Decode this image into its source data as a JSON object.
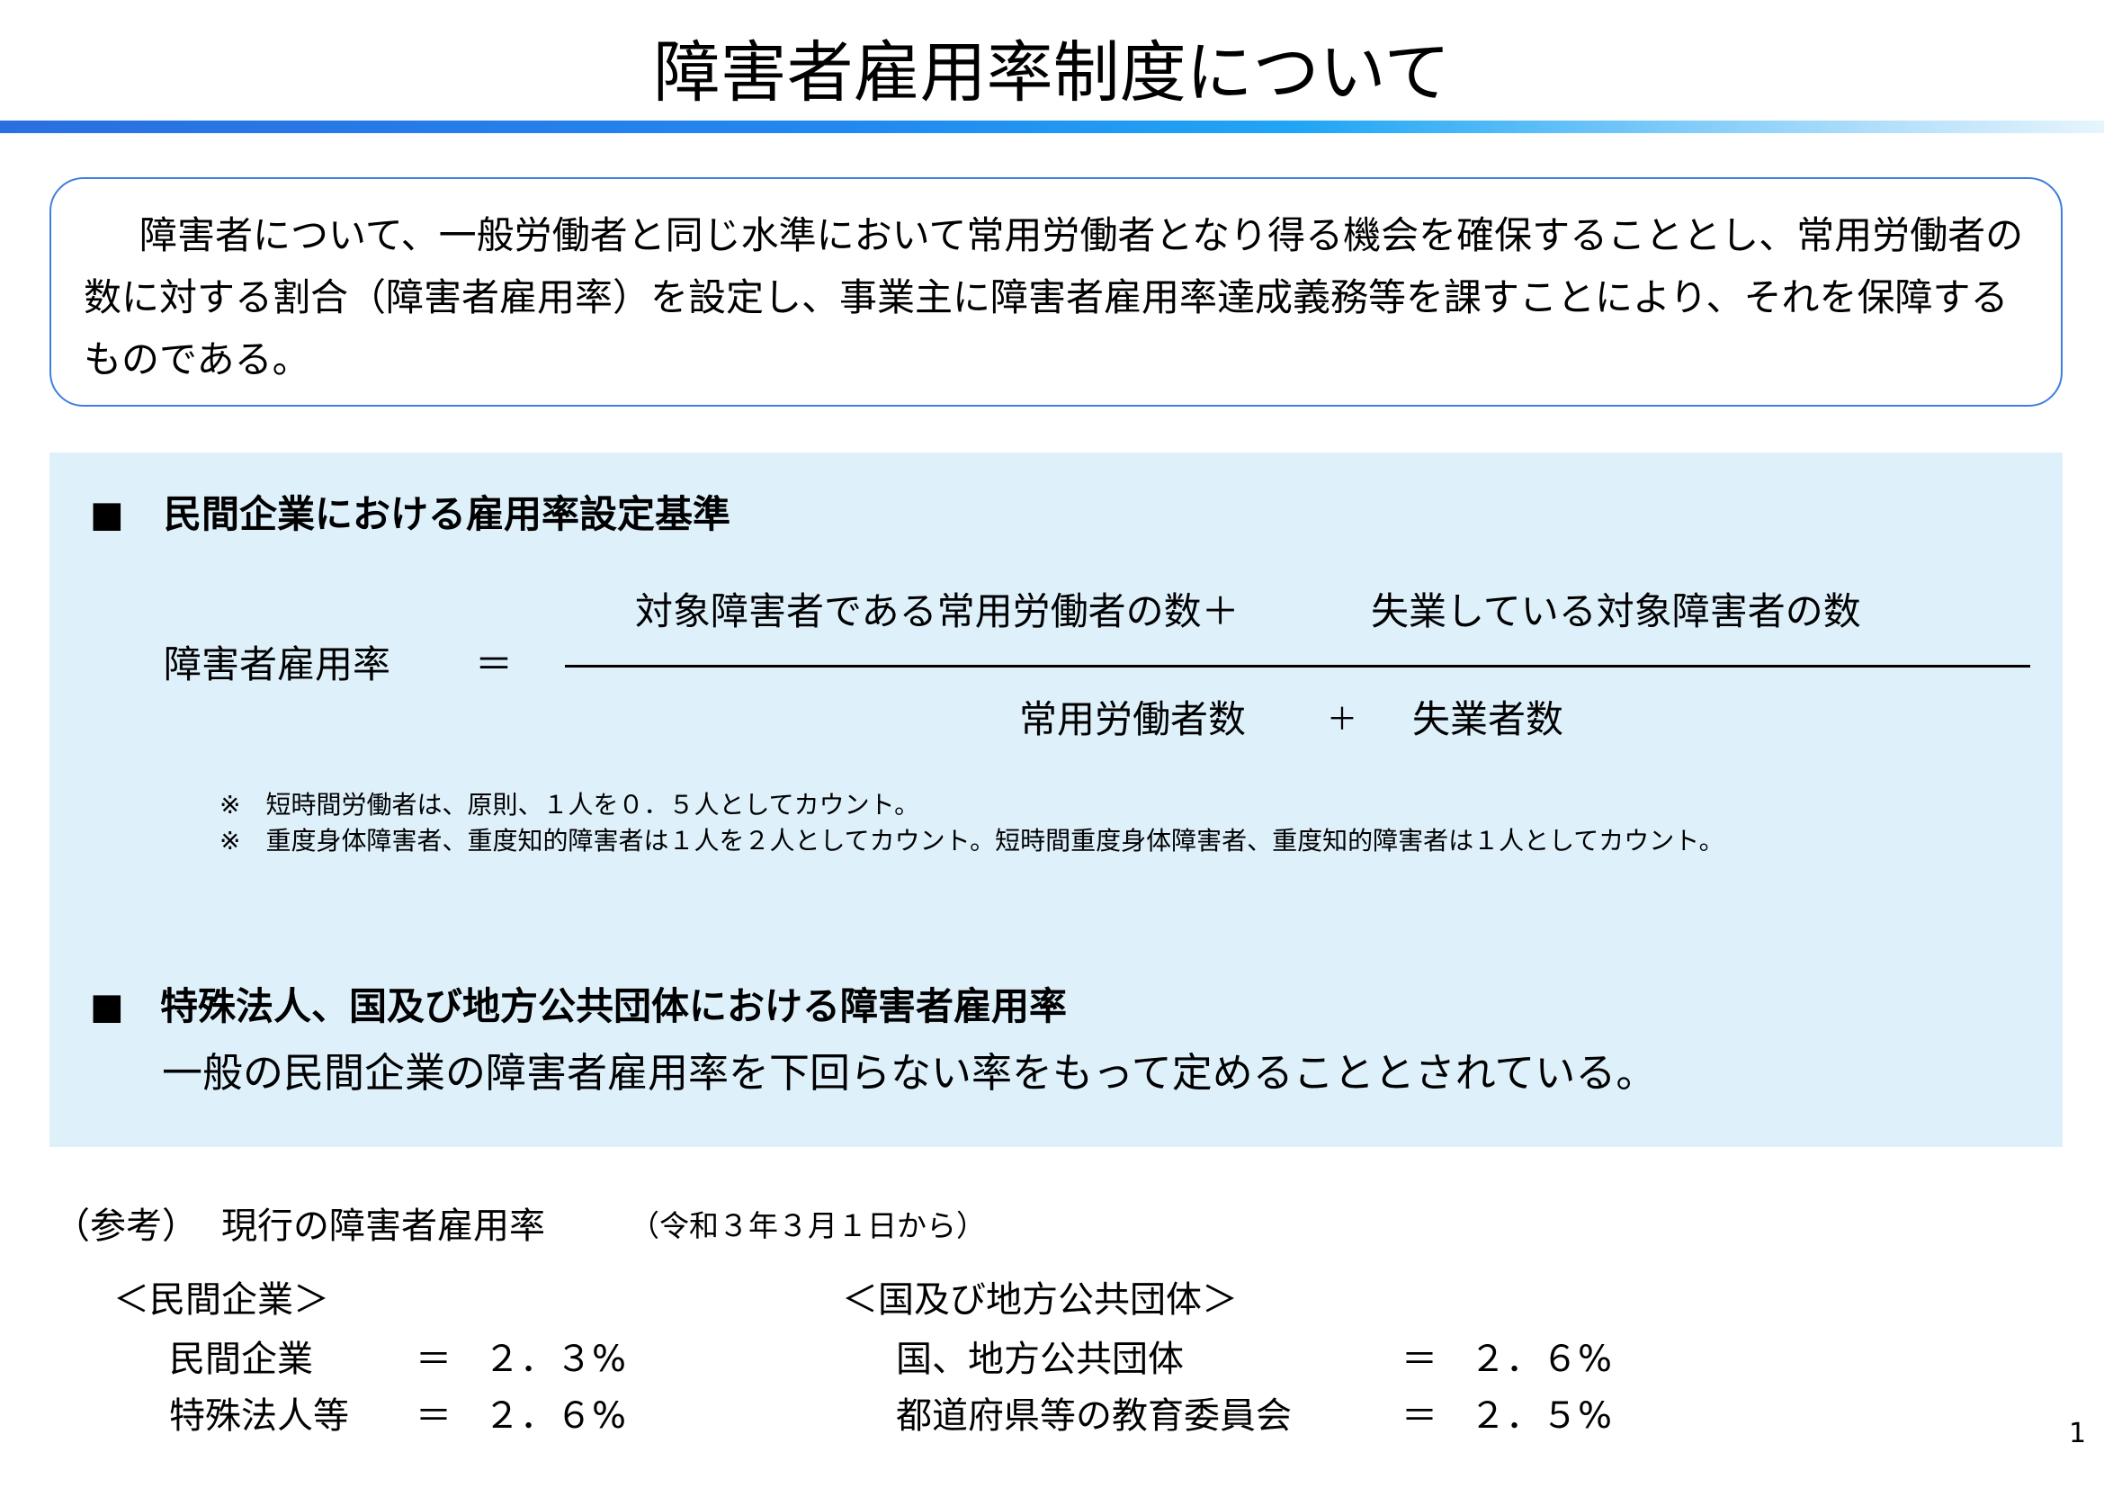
{
  "title": "障害者雇用率制度について",
  "intro": "障害者について、一般労働者と同じ水準において常用労働者となり得る機会を確保することとし、常用労働者の数に対する割合（障害者雇用率）を設定し、事業主に障害者雇用率達成義務等を課すことにより、それを保障するものである。",
  "section1": {
    "bullet": "■",
    "heading": "民間企業における雇用率設定基準",
    "formula": {
      "lhs": "障害者雇用率",
      "equals": "＝",
      "numerator_a": "対象障害者である常用労働者の数＋",
      "numerator_b": "失業している対象障害者の数",
      "denominator_a": "常用労働者数",
      "plus": "＋",
      "denominator_b": "失業者数"
    },
    "notes": [
      "※　短時間労働者は、原則、１人を０．５人としてカウント。",
      "※　重度身体障害者、重度知的障害者は１人を２人としてカウント。短時間重度身体障害者、重度知的障害者は１人としてカウント。"
    ]
  },
  "section2": {
    "bullet": "■",
    "heading": "特殊法人、国及び地方公共団体における障害者雇用率",
    "body": "一般の民間企業の障害者雇用率を下回らない率をもって定めることとされている。"
  },
  "reference": {
    "label": "（参考）",
    "title": "現行の障害者雇用率",
    "date": "（令和３年３月１日から）",
    "private": {
      "heading": "＜民間企業＞",
      "rows": [
        {
          "name": "民間企業",
          "eq": "＝",
          "value": "２．３%"
        },
        {
          "name": "特殊法人等",
          "eq": "＝",
          "value": "２．６%"
        }
      ]
    },
    "public": {
      "heading": "＜国及び地方公共団体＞",
      "rows": [
        {
          "name": "国、地方公共団体",
          "eq": "＝",
          "value": "２．６%"
        },
        {
          "name": "都道府県等の教育委員会",
          "eq": "＝",
          "value": "２．５%"
        }
      ]
    }
  },
  "page_number": "1",
  "colors": {
    "accent": "#2288f0",
    "panel": "#def1fb",
    "box_border": "#3d7fe0"
  }
}
